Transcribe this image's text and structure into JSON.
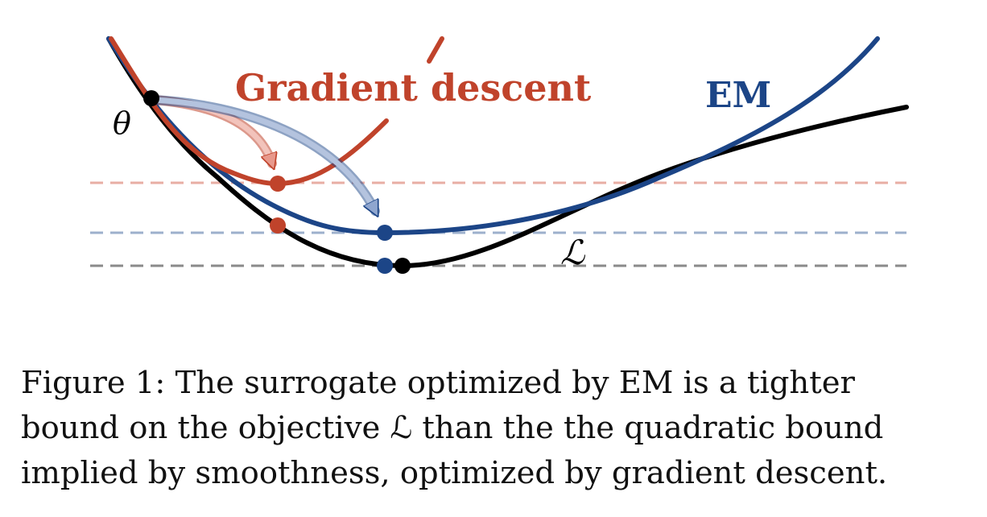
{
  "figure": {
    "labels": {
      "gradient_descent": "Gradient descent",
      "em": "EM",
      "theta": "θ",
      "objective": "ℒ"
    },
    "colors": {
      "gradient_descent": "#c0432b",
      "em": "#1c4587",
      "objective": "#000000",
      "gd_dashed": "#e8aea4",
      "em_dashed": "#9db0cc",
      "objective_dashed": "#8a8a8a"
    }
  },
  "caption": {
    "lines": [
      "Figure 1: The surrogate optimized by EM is a tighter",
      "bound on the objective ℒ than the the quadratic bound",
      "implied by smoothness, optimized by gradient descent."
    ]
  }
}
